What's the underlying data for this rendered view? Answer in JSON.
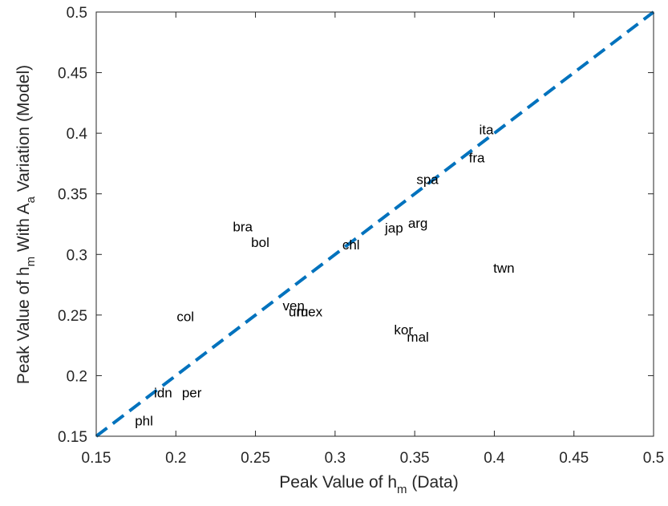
{
  "chart_data": {
    "type": "scatter",
    "xlabel": {
      "main": "Peak Value of h",
      "sub": "m",
      "tail": " (Data)"
    },
    "ylabel": {
      "p1": "Peak Value of h",
      "sub1": "m",
      "p2": " With A",
      "sub2": "a",
      "p3": " Variation (Model)"
    },
    "xlim": [
      0.15,
      0.5
    ],
    "ylim": [
      0.15,
      0.5
    ],
    "xticks": [
      "0.15",
      "0.2",
      "0.25",
      "0.3",
      "0.35",
      "0.4",
      "0.45",
      "0.5"
    ],
    "yticks": [
      "0.15",
      "0.2",
      "0.25",
      "0.3",
      "0.35",
      "0.4",
      "0.45",
      "0.5"
    ],
    "reference_line": {
      "from": [
        0.15,
        0.15
      ],
      "to": [
        0.5,
        0.5
      ],
      "style": "dashed",
      "color": "#0072BD"
    },
    "points": [
      {
        "label": "ita",
        "x": 0.395,
        "y": 0.403
      },
      {
        "label": "fra",
        "x": 0.389,
        "y": 0.38
      },
      {
        "label": "spa",
        "x": 0.358,
        "y": 0.362
      },
      {
        "label": "jap",
        "x": 0.337,
        "y": 0.322
      },
      {
        "label": "arg",
        "x": 0.352,
        "y": 0.326
      },
      {
        "label": "bra",
        "x": 0.242,
        "y": 0.323
      },
      {
        "label": "bol",
        "x": 0.253,
        "y": 0.31
      },
      {
        "label": "chl",
        "x": 0.31,
        "y": 0.308
      },
      {
        "label": "twn",
        "x": 0.406,
        "y": 0.289
      },
      {
        "label": "ven",
        "x": 0.274,
        "y": 0.258
      },
      {
        "label": "uru",
        "x": 0.277,
        "y": 0.253
      },
      {
        "label": "mex",
        "x": 0.284,
        "y": 0.253
      },
      {
        "label": "col",
        "x": 0.206,
        "y": 0.249
      },
      {
        "label": "kor",
        "x": 0.343,
        "y": 0.238
      },
      {
        "label": "mal",
        "x": 0.352,
        "y": 0.232
      },
      {
        "label": "idn",
        "x": 0.192,
        "y": 0.186
      },
      {
        "label": "per",
        "x": 0.21,
        "y": 0.186
      },
      {
        "label": "phl",
        "x": 0.18,
        "y": 0.163
      }
    ]
  }
}
